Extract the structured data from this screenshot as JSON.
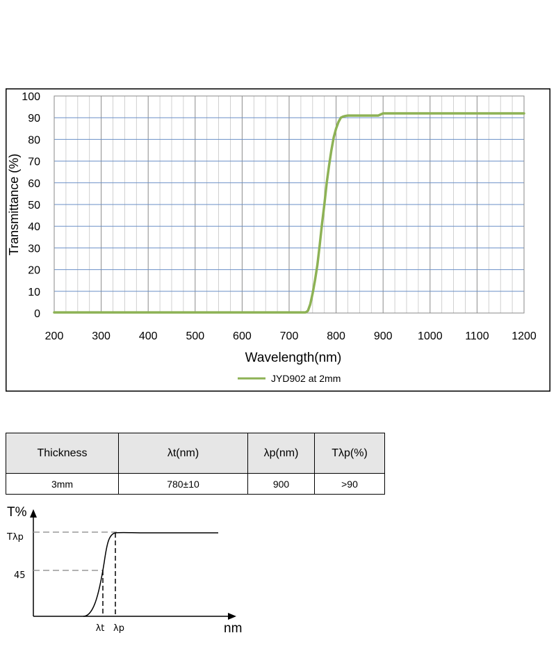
{
  "chart_data": {
    "type": "line",
    "xlabel": "Wavelength(nm)",
    "ylabel": "Transmittance (%)",
    "xlim": [
      200,
      1200
    ],
    "ylim": [
      0,
      100
    ],
    "x_ticks": [
      "200",
      "300",
      "400",
      "500",
      "600",
      "700",
      "800",
      "900",
      "1000",
      "1100",
      "1200"
    ],
    "y_ticks": [
      "0",
      "10",
      "20",
      "30",
      "40",
      "50",
      "60",
      "70",
      "80",
      "90",
      "100"
    ],
    "grid": true,
    "legend": "bottom-center",
    "series": [
      {
        "name": "JYD902 at 2mm",
        "color": "#8DB255",
        "x": [
          200,
          300,
          400,
          500,
          600,
          700,
          735,
          740,
          745,
          750,
          755,
          760,
          765,
          770,
          775,
          780,
          785,
          790,
          795,
          800,
          805,
          810,
          815,
          820,
          825,
          830,
          840,
          850,
          860,
          870,
          880,
          890,
          895,
          900,
          920,
          950,
          1000,
          1050,
          1100,
          1150,
          1200
        ],
        "y": [
          0.3,
          0.3,
          0.3,
          0.3,
          0.3,
          0.3,
          0.3,
          1,
          4,
          9,
          15,
          22,
          31,
          41,
          50,
          60,
          68,
          75,
          81,
          85,
          88,
          90,
          90.5,
          90.8,
          91,
          91,
          91,
          91,
          91,
          91,
          91,
          91,
          91.5,
          92,
          92,
          92,
          92,
          92,
          92,
          92,
          92
        ]
      }
    ]
  },
  "table": {
    "headers": [
      "Thickness",
      "λt(nm)",
      "λp(nm)",
      "Tλp(%)"
    ],
    "rows": [
      [
        "3mm",
        "780±10",
        "900",
        ">90"
      ]
    ]
  },
  "schematic": {
    "y_axis_label": "T%",
    "x_axis_label": "nm",
    "level_top_label": "Tλp",
    "level_mid_label": "45",
    "lambda_t_label": "λt",
    "lambda_p_label": "λp"
  }
}
